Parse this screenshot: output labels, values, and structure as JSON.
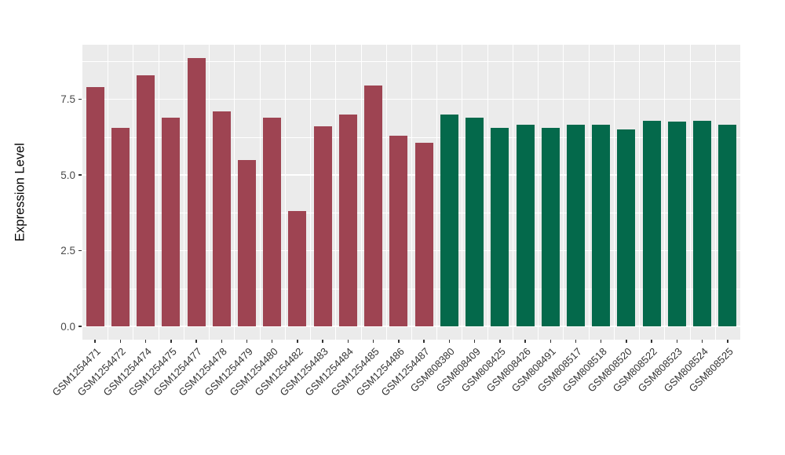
{
  "figure": {
    "background": "#ffffff",
    "panel_background": "#EBEBEB",
    "gridline_color": "#ffffff",
    "axis_text_color": "#333333"
  },
  "chart_data": {
    "type": "bar",
    "title": "",
    "xlabel": "",
    "ylabel": "Expression Level",
    "legend_position": "none",
    "grid": "major and minor white gridlines on gray panel",
    "ylim": [
      -0.45,
      9.3
    ],
    "yticks": [
      0,
      2.5,
      5,
      7.5
    ],
    "ytick_labels": [
      "0.0",
      "2.5",
      "5.0",
      "7.5"
    ],
    "minor_yticks": [
      1.25,
      3.75,
      6.25,
      8.75
    ],
    "categories": [
      "GSM1254471",
      "GSM1254472",
      "GSM1254474",
      "GSM1254475",
      "GSM1254477",
      "GSM1254478",
      "GSM1254479",
      "GSM1254480",
      "GSM1254482",
      "GSM1254483",
      "GSM1254484",
      "GSM1254485",
      "GSM1254486",
      "GSM1254487",
      "GSM808380",
      "GSM808409",
      "GSM808425",
      "GSM808426",
      "GSM808491",
      "GSM808517",
      "GSM808518",
      "GSM808520",
      "GSM808522",
      "GSM808523",
      "GSM808524",
      "GSM808525"
    ],
    "values": [
      7.9,
      6.55,
      8.3,
      6.9,
      8.85,
      7.1,
      5.5,
      6.9,
      3.8,
      6.6,
      7.0,
      7.95,
      6.3,
      6.05,
      7.0,
      6.9,
      6.55,
      6.65,
      6.55,
      6.65,
      6.65,
      6.5,
      6.8,
      6.75,
      6.8,
      6.65
    ],
    "bar_groups": [
      "A",
      "A",
      "A",
      "A",
      "A",
      "A",
      "A",
      "A",
      "A",
      "A",
      "A",
      "A",
      "A",
      "A",
      "B",
      "B",
      "B",
      "B",
      "B",
      "B",
      "B",
      "B",
      "B",
      "B",
      "B",
      "B"
    ],
    "group_colors": {
      "A": "#9E4452",
      "B": "#04694B"
    }
  }
}
